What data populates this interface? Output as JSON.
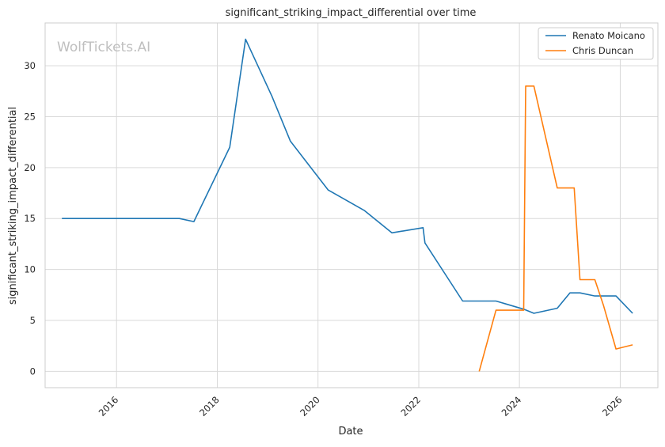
{
  "chart_data": {
    "type": "line",
    "title": "significant_striking_impact_differential over time",
    "xlabel": "Date",
    "ylabel": "significant_striking_impact_differential",
    "watermark": "WolfTickets.AI",
    "x_ticks": [
      "2016",
      "2018",
      "2020",
      "2022",
      "2024",
      "2026"
    ],
    "y_ticks": [
      "0",
      "5",
      "10",
      "15",
      "20",
      "25",
      "30"
    ],
    "xlim": [
      "2014-08-01",
      "2026-10-01"
    ],
    "ylim": [
      -1.6,
      34.2
    ],
    "grid": true,
    "legend_position": "top-right",
    "series": [
      {
        "name": "Renato Moicano",
        "color": "#1f77b4",
        "points": [
          [
            "2014-12-01",
            15.0
          ],
          [
            "2017-04-01",
            15.0
          ],
          [
            "2017-07-15",
            14.7
          ],
          [
            "2018-04-01",
            22.0
          ],
          [
            "2018-07-25",
            32.6
          ],
          [
            "2019-02-01",
            27.0
          ],
          [
            "2019-06-15",
            22.6
          ],
          [
            "2020-03-15",
            17.8
          ],
          [
            "2020-12-01",
            15.8
          ],
          [
            "2021-06-20",
            13.6
          ],
          [
            "2022-02-01",
            14.1
          ],
          [
            "2022-02-15",
            12.6
          ],
          [
            "2022-11-15",
            6.9
          ],
          [
            "2023-07-15",
            6.9
          ],
          [
            "2024-02-01",
            6.1
          ],
          [
            "2024-04-15",
            5.7
          ],
          [
            "2024-10-01",
            6.2
          ],
          [
            "2025-01-01",
            7.7
          ],
          [
            "2025-03-15",
            7.7
          ],
          [
            "2025-07-01",
            7.4
          ],
          [
            "2025-12-01",
            7.4
          ],
          [
            "2026-04-01",
            5.7
          ]
        ]
      },
      {
        "name": "Chris Duncan",
        "color": "#ff7f0e",
        "points": [
          [
            "2023-03-15",
            0.0
          ],
          [
            "2023-07-15",
            6.0
          ],
          [
            "2024-02-01",
            6.0
          ],
          [
            "2024-02-15",
            28.0
          ],
          [
            "2024-04-15",
            28.0
          ],
          [
            "2024-10-01",
            18.0
          ],
          [
            "2025-02-01",
            18.0
          ],
          [
            "2025-03-15",
            9.0
          ],
          [
            "2025-07-01",
            9.0
          ],
          [
            "2025-09-01",
            6.5
          ],
          [
            "2025-12-01",
            2.2
          ],
          [
            "2026-04-01",
            2.6
          ]
        ]
      }
    ]
  }
}
